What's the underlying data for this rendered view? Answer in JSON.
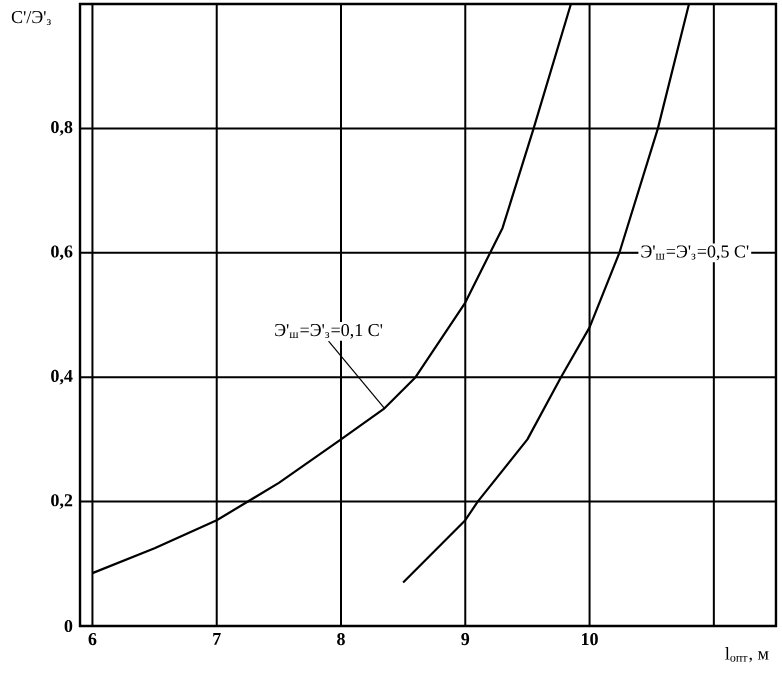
{
  "chart_data": {
    "type": "line",
    "xlabel": "l$_{опт}$, м",
    "ylabel": "C'/Э'$_{з}$",
    "xlim": [
      5.9,
      11.5
    ],
    "ylim": [
      0,
      1.0
    ],
    "xticks": [
      6,
      7,
      8,
      9,
      10,
      {
        "value": 11,
        "label": null
      }
    ],
    "yticks": [
      0,
      {
        "value": 0.2,
        "label": "0,2"
      },
      {
        "value": 0.4,
        "label": "0,4"
      },
      {
        "value": 0.6,
        "label": "0,6"
      },
      {
        "value": 0.8,
        "label": "0,8"
      }
    ],
    "grid": true,
    "series": [
      {
        "name": "Э'$_{ш}$=Э'$_{з}$=0,1 C'",
        "color": "#000000",
        "x": [
          6,
          6.5,
          7,
          7.5,
          8,
          8.35,
          8.6,
          9,
          9.3,
          9.55,
          9.85
        ],
        "values": [
          0.085,
          0.125,
          0.17,
          0.23,
          0.3,
          0.35,
          0.4,
          0.52,
          0.64,
          0.8,
          1.0
        ]
      },
      {
        "name": "Э'$_{ш}$=Э'$_{з}$=0,5 C'",
        "color": "#000000",
        "x": [
          8.5,
          9,
          9.1,
          9.5,
          9.77,
          10,
          10.24,
          10.55,
          10.8
        ],
        "values": [
          0.07,
          0.17,
          0.2,
          0.3,
          0.4,
          0.48,
          0.6,
          0.8,
          1.0
        ]
      }
    ]
  }
}
